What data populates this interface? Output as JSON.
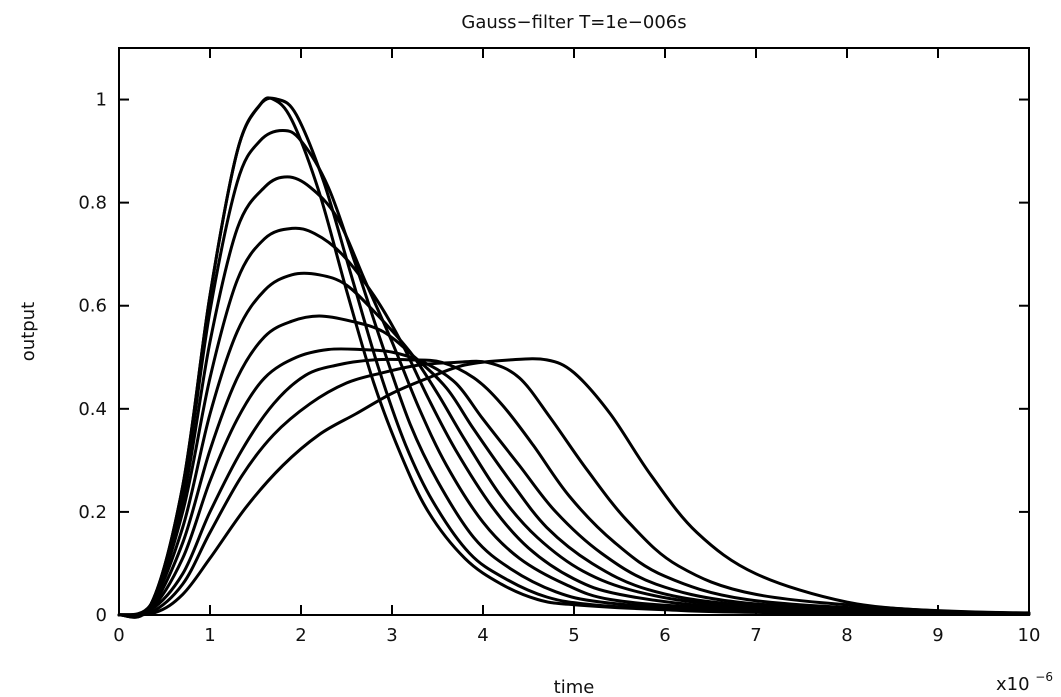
{
  "chart_data": {
    "type": "line",
    "title": "Gauss−filter T=1e−006s",
    "xlabel": "time",
    "ylabel": "output",
    "x_multiplier": "x10",
    "x_multiplier_exp": "−6",
    "xlim": [
      0,
      10
    ],
    "ylim": [
      0,
      1.1
    ],
    "x_ticks": [
      0,
      1,
      2,
      3,
      4,
      5,
      6,
      7,
      8,
      9,
      10
    ],
    "x_tick_labels": [
      "0",
      "1",
      "2",
      "3",
      "4",
      "5",
      "6",
      "7",
      "8",
      "9",
      "10"
    ],
    "y_ticks": [
      0,
      0.2,
      0.4,
      0.6,
      0.8,
      1
    ],
    "y_tick_labels": [
      "0",
      "0.2",
      "0.4",
      "0.6",
      "0.8",
      "1"
    ],
    "grid": false,
    "legend": "none",
    "series": [
      {
        "values": [
          [
            0,
            0
          ],
          [
            0.35,
            0.02
          ],
          [
            0.7,
            0.25
          ],
          [
            1.0,
            0.62
          ],
          [
            1.3,
            0.9
          ],
          [
            1.55,
            0.99
          ],
          [
            1.7,
            1.0
          ],
          [
            1.9,
            0.96
          ],
          [
            2.2,
            0.82
          ],
          [
            2.5,
            0.63
          ],
          [
            2.8,
            0.45
          ],
          [
            3.1,
            0.31
          ],
          [
            3.4,
            0.2
          ],
          [
            3.8,
            0.11
          ],
          [
            4.2,
            0.06
          ],
          [
            4.6,
            0.03
          ],
          [
            5.0,
            0.02
          ],
          [
            6.0,
            0.01
          ],
          [
            7.0,
            0.005
          ],
          [
            10,
            0.002
          ]
        ]
      },
      {
        "values": [
          [
            0,
            0
          ],
          [
            0.35,
            0.02
          ],
          [
            0.7,
            0.25
          ],
          [
            1.0,
            0.62
          ],
          [
            1.3,
            0.9
          ],
          [
            1.55,
            0.99
          ],
          [
            1.75,
            1.0
          ],
          [
            1.95,
            0.97
          ],
          [
            2.25,
            0.84
          ],
          [
            2.55,
            0.66
          ],
          [
            2.85,
            0.48
          ],
          [
            3.15,
            0.33
          ],
          [
            3.45,
            0.22
          ],
          [
            3.85,
            0.12
          ],
          [
            4.25,
            0.07
          ],
          [
            4.7,
            0.035
          ],
          [
            5.2,
            0.02
          ],
          [
            6.2,
            0.01
          ],
          [
            7.5,
            0.005
          ],
          [
            10,
            0.002
          ]
        ]
      },
      {
        "values": [
          [
            0,
            0
          ],
          [
            0.35,
            0.02
          ],
          [
            0.7,
            0.24
          ],
          [
            1.0,
            0.59
          ],
          [
            1.3,
            0.84
          ],
          [
            1.55,
            0.92
          ],
          [
            1.8,
            0.94
          ],
          [
            2.0,
            0.92
          ],
          [
            2.3,
            0.83
          ],
          [
            2.6,
            0.68
          ],
          [
            2.9,
            0.52
          ],
          [
            3.2,
            0.37
          ],
          [
            3.5,
            0.26
          ],
          [
            3.9,
            0.15
          ],
          [
            4.3,
            0.09
          ],
          [
            4.8,
            0.045
          ],
          [
            5.3,
            0.025
          ],
          [
            6.3,
            0.012
          ],
          [
            7.8,
            0.005
          ],
          [
            10,
            0.002
          ]
        ]
      },
      {
        "values": [
          [
            0,
            0
          ],
          [
            0.35,
            0.02
          ],
          [
            0.7,
            0.22
          ],
          [
            1.0,
            0.53
          ],
          [
            1.3,
            0.75
          ],
          [
            1.6,
            0.83
          ],
          [
            1.85,
            0.85
          ],
          [
            2.1,
            0.83
          ],
          [
            2.4,
            0.77
          ],
          [
            2.7,
            0.65
          ],
          [
            3.0,
            0.53
          ],
          [
            3.3,
            0.4
          ],
          [
            3.6,
            0.29
          ],
          [
            4.0,
            0.18
          ],
          [
            4.4,
            0.11
          ],
          [
            4.9,
            0.06
          ],
          [
            5.4,
            0.03
          ],
          [
            6.4,
            0.015
          ],
          [
            8.0,
            0.006
          ],
          [
            10,
            0.002
          ]
        ]
      },
      {
        "values": [
          [
            0,
            0
          ],
          [
            0.35,
            0.02
          ],
          [
            0.7,
            0.2
          ],
          [
            1.0,
            0.46
          ],
          [
            1.3,
            0.65
          ],
          [
            1.6,
            0.73
          ],
          [
            1.9,
            0.75
          ],
          [
            2.15,
            0.74
          ],
          [
            2.45,
            0.7
          ],
          [
            2.8,
            0.62
          ],
          [
            3.1,
            0.53
          ],
          [
            3.4,
            0.42
          ],
          [
            3.7,
            0.32
          ],
          [
            4.1,
            0.21
          ],
          [
            4.5,
            0.13
          ],
          [
            5.0,
            0.07
          ],
          [
            5.5,
            0.04
          ],
          [
            6.5,
            0.017
          ],
          [
            8.0,
            0.007
          ],
          [
            10,
            0.002
          ]
        ]
      },
      {
        "values": [
          [
            0,
            0
          ],
          [
            0.35,
            0.02
          ],
          [
            0.7,
            0.17
          ],
          [
            1.0,
            0.39
          ],
          [
            1.3,
            0.55
          ],
          [
            1.6,
            0.63
          ],
          [
            1.9,
            0.66
          ],
          [
            2.2,
            0.66
          ],
          [
            2.5,
            0.64
          ],
          [
            2.85,
            0.58
          ],
          [
            3.2,
            0.51
          ],
          [
            3.5,
            0.43
          ],
          [
            3.8,
            0.34
          ],
          [
            4.2,
            0.23
          ],
          [
            4.6,
            0.15
          ],
          [
            5.1,
            0.085
          ],
          [
            5.7,
            0.045
          ],
          [
            6.6,
            0.02
          ],
          [
            8.2,
            0.008
          ],
          [
            10,
            0.002
          ]
        ]
      },
      {
        "values": [
          [
            0,
            0
          ],
          [
            0.35,
            0.015
          ],
          [
            0.7,
            0.14
          ],
          [
            1.0,
            0.32
          ],
          [
            1.3,
            0.46
          ],
          [
            1.6,
            0.54
          ],
          [
            1.9,
            0.57
          ],
          [
            2.2,
            0.58
          ],
          [
            2.55,
            0.57
          ],
          [
            2.9,
            0.55
          ],
          [
            3.25,
            0.5
          ],
          [
            3.6,
            0.44
          ],
          [
            3.9,
            0.36
          ],
          [
            4.3,
            0.26
          ],
          [
            4.7,
            0.17
          ],
          [
            5.2,
            0.1
          ],
          [
            5.8,
            0.05
          ],
          [
            6.7,
            0.022
          ],
          [
            8.3,
            0.008
          ],
          [
            10,
            0.002
          ]
        ]
      },
      {
        "values": [
          [
            0,
            0
          ],
          [
            0.35,
            0.012
          ],
          [
            0.7,
            0.11
          ],
          [
            1.0,
            0.26
          ],
          [
            1.3,
            0.38
          ],
          [
            1.6,
            0.46
          ],
          [
            1.95,
            0.5
          ],
          [
            2.3,
            0.515
          ],
          [
            2.65,
            0.515
          ],
          [
            3.0,
            0.51
          ],
          [
            3.35,
            0.49
          ],
          [
            3.7,
            0.45
          ],
          [
            4.0,
            0.38
          ],
          [
            4.4,
            0.29
          ],
          [
            4.8,
            0.2
          ],
          [
            5.3,
            0.12
          ],
          [
            5.9,
            0.06
          ],
          [
            6.8,
            0.025
          ],
          [
            8.4,
            0.009
          ],
          [
            10,
            0.002
          ]
        ]
      },
      {
        "values": [
          [
            0,
            0
          ],
          [
            0.35,
            0.01
          ],
          [
            0.7,
            0.08
          ],
          [
            1.0,
            0.2
          ],
          [
            1.35,
            0.32
          ],
          [
            1.7,
            0.41
          ],
          [
            2.05,
            0.465
          ],
          [
            2.4,
            0.485
          ],
          [
            2.8,
            0.495
          ],
          [
            3.2,
            0.495
          ],
          [
            3.55,
            0.49
          ],
          [
            3.9,
            0.46
          ],
          [
            4.2,
            0.41
          ],
          [
            4.55,
            0.33
          ],
          [
            4.95,
            0.23
          ],
          [
            5.45,
            0.14
          ],
          [
            6.0,
            0.075
          ],
          [
            6.9,
            0.03
          ],
          [
            8.5,
            0.01
          ],
          [
            10,
            0.002
          ]
        ]
      },
      {
        "values": [
          [
            0,
            0
          ],
          [
            0.35,
            0.005
          ],
          [
            0.7,
            0.06
          ],
          [
            1.0,
            0.16
          ],
          [
            1.35,
            0.27
          ],
          [
            1.7,
            0.35
          ],
          [
            2.1,
            0.41
          ],
          [
            2.5,
            0.45
          ],
          [
            2.9,
            0.47
          ],
          [
            3.3,
            0.485
          ],
          [
            3.7,
            0.49
          ],
          [
            4.05,
            0.49
          ],
          [
            4.4,
            0.46
          ],
          [
            4.75,
            0.38
          ],
          [
            5.15,
            0.28
          ],
          [
            5.6,
            0.18
          ],
          [
            6.15,
            0.095
          ],
          [
            7.0,
            0.04
          ],
          [
            8.6,
            0.012
          ],
          [
            10,
            0.003
          ]
        ]
      },
      {
        "values": [
          [
            0,
            0
          ],
          [
            0.4,
            0.005
          ],
          [
            0.7,
            0.04
          ],
          [
            1.0,
            0.11
          ],
          [
            1.4,
            0.21
          ],
          [
            1.8,
            0.29
          ],
          [
            2.2,
            0.35
          ],
          [
            2.6,
            0.39
          ],
          [
            3.0,
            0.43
          ],
          [
            3.4,
            0.46
          ],
          [
            3.8,
            0.485
          ],
          [
            4.3,
            0.495
          ],
          [
            4.7,
            0.495
          ],
          [
            5.0,
            0.47
          ],
          [
            5.4,
            0.39
          ],
          [
            5.85,
            0.27
          ],
          [
            6.35,
            0.16
          ],
          [
            7.0,
            0.08
          ],
          [
            8.0,
            0.025
          ],
          [
            9.0,
            0.008
          ],
          [
            10,
            0.004
          ]
        ]
      }
    ]
  }
}
